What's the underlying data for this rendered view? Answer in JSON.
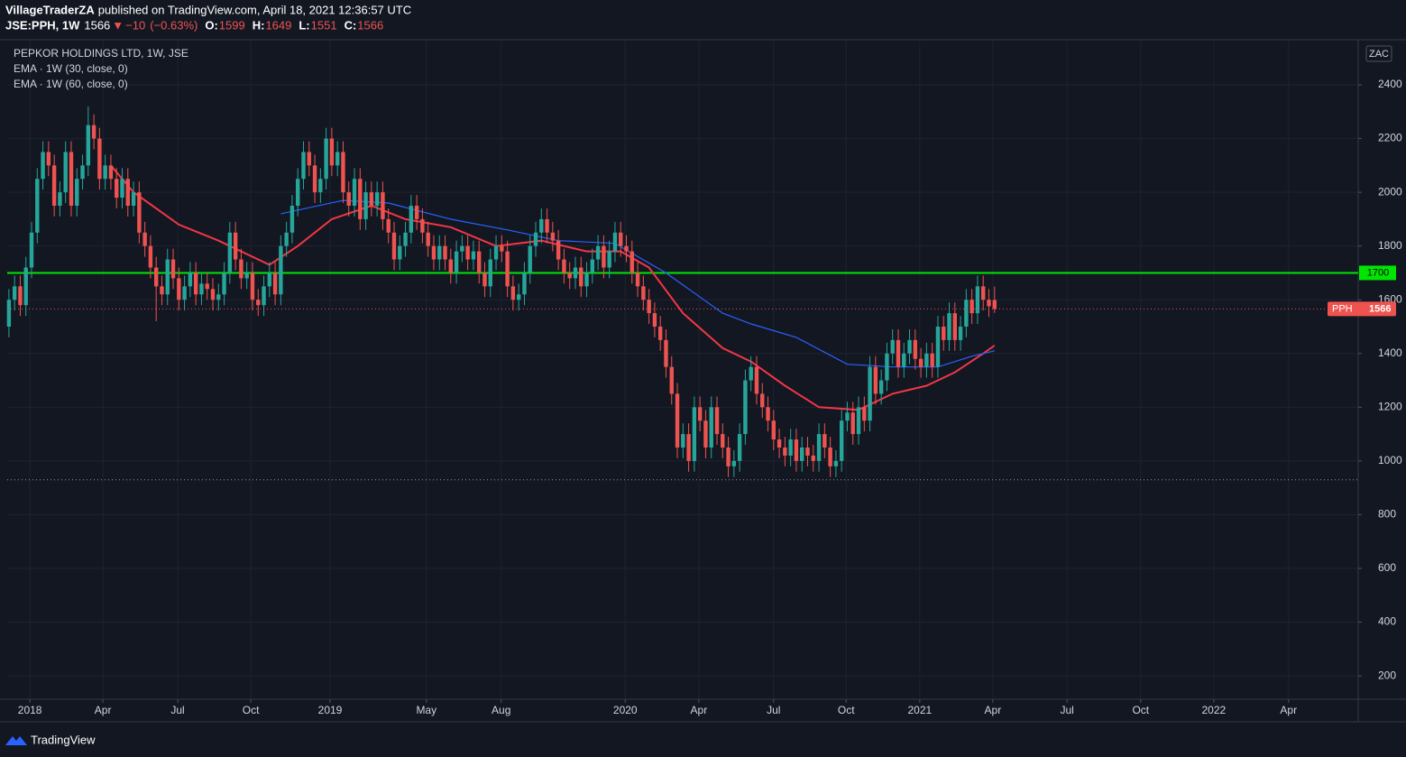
{
  "header": {
    "publisher": "VillageTraderZA",
    "published": "published on TradingView.com, April 18, 2021 12:36:57 UTC",
    "symbol": "JSE:PPH, 1W",
    "direction": "▼",
    "change": {
      "value": -10,
      "label": "−10"
    },
    "change_pct": {
      "value": -0.63,
      "label": "(−0.63%)"
    },
    "ohlc_labels": [
      "O:",
      "H:",
      "L:",
      "C:"
    ]
  },
  "footer": {
    "brand": "TradingView"
  },
  "chart_data": {
    "type": "candlestick",
    "title": "PEPKOR HOLDINGS LTD, 1W, JSE",
    "currency": "ZAC",
    "symbol_short": "PPH",
    "up_color": "#26a69a",
    "down_color": "#ef5350",
    "grid": true,
    "open": [
      1500,
      1600,
      1650,
      1580,
      1720,
      1850,
      2050,
      2150,
      2100,
      1950,
      2000,
      2150,
      1950,
      2050,
      2100,
      2250,
      2200,
      2050,
      2100,
      2050,
      1980,
      2050,
      1950,
      2000,
      1850,
      1800,
      1720,
      1650,
      1620,
      1750,
      1680,
      1600,
      1650,
      1700,
      1620,
      1660,
      1640,
      1600,
      1620,
      1700,
      1850,
      1750,
      1680,
      1700,
      1600,
      1580,
      1650,
      1700,
      1620,
      1800,
      1850,
      1950,
      2050,
      2150,
      2100,
      2000,
      2050,
      2200,
      2100,
      2150,
      2000,
      1950,
      2050,
      1900,
      2000,
      1950,
      2000,
      1900,
      1850,
      1750,
      1800,
      1850,
      1950,
      1900,
      1850,
      1800,
      1750,
      1800,
      1750,
      1700,
      1780,
      1800,
      1750,
      1780,
      1700,
      1650,
      1750,
      1800,
      1780,
      1650,
      1600,
      1620,
      1700,
      1800,
      1850,
      1900,
      1850,
      1820,
      1750,
      1700,
      1680,
      1720,
      1650,
      1700,
      1750,
      1800,
      1720,
      1780,
      1850,
      1800,
      1780,
      1700,
      1650,
      1600,
      1550,
      1500,
      1450,
      1350,
      1250,
      1050,
      1100,
      1000,
      1200,
      1150,
      1050,
      1200,
      1100,
      1050,
      980,
      1000,
      1100,
      1300,
      1350,
      1250,
      1200,
      1150,
      1080,
      1050,
      1020,
      1080,
      1000,
      1050,
      1020,
      1000,
      1100,
      1050,
      980,
      1000,
      1150,
      1180,
      1100,
      1200,
      1150,
      1350,
      1250,
      1300,
      1400,
      1450,
      1350,
      1400,
      1450,
      1380,
      1350,
      1400,
      1350,
      1500,
      1450,
      1550,
      1450,
      1500,
      1600,
      1550,
      1650,
      1600,
      1599
    ],
    "high": [
      1640,
      1690,
      1690,
      1760,
      1890,
      2090,
      2190,
      2190,
      2140,
      2040,
      2190,
      2190,
      2090,
      2140,
      2320,
      2290,
      2240,
      2140,
      2140,
      2090,
      2090,
      2090,
      2040,
      2040,
      1890,
      1840,
      1760,
      1690,
      1790,
      1790,
      1720,
      1690,
      1740,
      1740,
      1700,
      1700,
      1680,
      1660,
      1740,
      1890,
      1890,
      1790,
      1740,
      1740,
      1640,
      1690,
      1740,
      1740,
      1840,
      1890,
      1990,
      2090,
      2190,
      2190,
      2140,
      2090,
      2240,
      2240,
      2190,
      2190,
      2040,
      2090,
      2090,
      2040,
      2040,
      2040,
      2040,
      1940,
      1890,
      1840,
      1890,
      1990,
      1990,
      1940,
      1890,
      1840,
      1840,
      1840,
      1790,
      1820,
      1840,
      1840,
      1820,
      1820,
      1740,
      1790,
      1840,
      1840,
      1820,
      1690,
      1660,
      1740,
      1840,
      1890,
      1940,
      1940,
      1890,
      1860,
      1790,
      1740,
      1760,
      1760,
      1740,
      1790,
      1840,
      1840,
      1820,
      1890,
      1890,
      1840,
      1820,
      1740,
      1690,
      1640,
      1590,
      1540,
      1490,
      1390,
      1290,
      1140,
      1140,
      1240,
      1240,
      1190,
      1240,
      1240,
      1140,
      1090,
      1040,
      1140,
      1340,
      1390,
      1390,
      1290,
      1240,
      1190,
      1120,
      1090,
      1120,
      1120,
      1090,
      1090,
      1060,
      1140,
      1140,
      1090,
      1040,
      1190,
      1220,
      1220,
      1240,
      1240,
      1390,
      1390,
      1340,
      1440,
      1490,
      1490,
      1440,
      1490,
      1490,
      1420,
      1440,
      1440,
      1540,
      1540,
      1590,
      1590,
      1540,
      1640,
      1640,
      1690,
      1690,
      1640,
      1649
    ],
    "low": [
      1460,
      1560,
      1540,
      1540,
      1680,
      1810,
      2010,
      2060,
      1910,
      1910,
      1960,
      1910,
      1910,
      2010,
      2060,
      2160,
      2010,
      2010,
      2010,
      1940,
      1940,
      1910,
      1910,
      1810,
      1760,
      1680,
      1520,
      1580,
      1580,
      1640,
      1560,
      1560,
      1610,
      1580,
      1580,
      1600,
      1560,
      1560,
      1580,
      1660,
      1710,
      1640,
      1640,
      1560,
      1540,
      1540,
      1610,
      1580,
      1580,
      1760,
      1810,
      1910,
      2010,
      2060,
      1960,
      1960,
      2010,
      2060,
      2060,
      1960,
      1910,
      1910,
      1860,
      1860,
      1910,
      1910,
      1860,
      1810,
      1710,
      1710,
      1760,
      1810,
      1860,
      1810,
      1760,
      1710,
      1710,
      1710,
      1660,
      1660,
      1740,
      1710,
      1710,
      1660,
      1610,
      1610,
      1710,
      1740,
      1610,
      1560,
      1560,
      1580,
      1660,
      1760,
      1810,
      1810,
      1780,
      1710,
      1660,
      1640,
      1640,
      1610,
      1610,
      1660,
      1710,
      1680,
      1680,
      1740,
      1760,
      1740,
      1660,
      1610,
      1560,
      1510,
      1460,
      1410,
      1310,
      1210,
      1010,
      1010,
      960,
      960,
      1110,
      1010,
      1010,
      1060,
      1010,
      940,
      940,
      960,
      1060,
      1260,
      1210,
      1160,
      1110,
      1040,
      1010,
      980,
      980,
      960,
      960,
      980,
      960,
      960,
      1010,
      940,
      940,
      960,
      1110,
      1060,
      1060,
      1110,
      1110,
      1210,
      1210,
      1260,
      1360,
      1310,
      1310,
      1360,
      1340,
      1310,
      1310,
      1310,
      1310,
      1410,
      1410,
      1410,
      1410,
      1460,
      1510,
      1510,
      1560,
      1536,
      1551
    ],
    "close": [
      1600,
      1650,
      1580,
      1720,
      1850,
      2050,
      2150,
      2100,
      1950,
      2000,
      2150,
      1950,
      2050,
      2100,
      2250,
      2200,
      2050,
      2100,
      2050,
      1980,
      2050,
      1950,
      2000,
      1850,
      1800,
      1720,
      1650,
      1620,
      1750,
      1680,
      1600,
      1650,
      1700,
      1620,
      1660,
      1640,
      1600,
      1620,
      1700,
      1850,
      1750,
      1680,
      1700,
      1600,
      1580,
      1650,
      1700,
      1620,
      1800,
      1850,
      1950,
      2050,
      2150,
      2100,
      2000,
      2050,
      2200,
      2100,
      2150,
      2000,
      1950,
      2050,
      1900,
      2000,
      1950,
      2000,
      1900,
      1850,
      1750,
      1800,
      1850,
      1950,
      1900,
      1850,
      1800,
      1750,
      1800,
      1750,
      1700,
      1780,
      1800,
      1750,
      1780,
      1700,
      1650,
      1750,
      1800,
      1780,
      1650,
      1600,
      1620,
      1700,
      1800,
      1850,
      1900,
      1850,
      1820,
      1750,
      1700,
      1680,
      1720,
      1650,
      1700,
      1750,
      1800,
      1720,
      1780,
      1850,
      1800,
      1780,
      1700,
      1650,
      1600,
      1550,
      1500,
      1450,
      1350,
      1250,
      1050,
      1100,
      1000,
      1200,
      1150,
      1050,
      1200,
      1100,
      1050,
      980,
      1000,
      1100,
      1300,
      1350,
      1250,
      1200,
      1150,
      1080,
      1050,
      1020,
      1080,
      1000,
      1050,
      1020,
      1000,
      1100,
      1050,
      980,
      1000,
      1150,
      1180,
      1100,
      1200,
      1150,
      1350,
      1250,
      1300,
      1400,
      1450,
      1350,
      1400,
      1450,
      1380,
      1350,
      1400,
      1350,
      1500,
      1450,
      1550,
      1450,
      1500,
      1600,
      1550,
      1650,
      1600,
      1576,
      1566
    ],
    "series": [
      {
        "name": "EMA · 1W (30, close, 0)",
        "color": "#f23645",
        "x": [
          18,
          22,
          30,
          37,
          46,
          51,
          57,
          64,
          70,
          78,
          86,
          94,
          102,
          108,
          113,
          119,
          126,
          131,
          137,
          143,
          150,
          156,
          162,
          167,
          172,
          174
        ],
        "values": [
          2100,
          2000,
          1880,
          1820,
          1730,
          1800,
          1900,
          1950,
          1900,
          1870,
          1800,
          1820,
          1780,
          1780,
          1720,
          1550,
          1420,
          1370,
          1280,
          1200,
          1190,
          1250,
          1280,
          1330,
          1400,
          1430
        ]
      },
      {
        "name": "EMA · 1W (60, close, 0)",
        "color": "#2962ff",
        "x": [
          48,
          59,
          67,
          78,
          88,
          97,
          107,
          116,
          126,
          131,
          139,
          148,
          156,
          164,
          170,
          174
        ],
        "values": [
          1920,
          1970,
          1960,
          1900,
          1860,
          1820,
          1810,
          1700,
          1550,
          1510,
          1460,
          1360,
          1350,
          1350,
          1390,
          1410
        ]
      }
    ],
    "hlines": [
      {
        "value": 1700,
        "color": "#00e600"
      },
      {
        "value": 930,
        "color": "#9598a1"
      }
    ],
    "xlim": [
      -0.3,
      238.2
    ],
    "xticks": [
      {
        "value": 3.7,
        "label": "2018"
      },
      {
        "value": 16.6,
        "label": "Apr"
      },
      {
        "value": 29.8,
        "label": "Jul"
      },
      {
        "value": 42.7,
        "label": "Oct"
      },
      {
        "value": 56.7,
        "label": "2019"
      },
      {
        "value": 73.7,
        "label": "May"
      },
      {
        "value": 86.9,
        "label": "Aug"
      },
      {
        "value": 108.8,
        "label": "2020"
      },
      {
        "value": 121.8,
        "label": "Apr"
      },
      {
        "value": 135,
        "label": "Jul"
      },
      {
        "value": 147.8,
        "label": "Oct"
      },
      {
        "value": 160.8,
        "label": "2021"
      },
      {
        "value": 173.7,
        "label": "Apr"
      },
      {
        "value": 186.8,
        "label": "Jul"
      },
      {
        "value": 199.8,
        "label": "Oct"
      },
      {
        "value": 212.7,
        "label": "2022"
      },
      {
        "value": 225.9,
        "label": "Apr"
      }
    ],
    "ylim": [
      113,
      2568
    ],
    "yticks": [
      200,
      400,
      600,
      800,
      1000,
      1200,
      1400,
      1600,
      1800,
      2000,
      2200,
      2400
    ]
  }
}
